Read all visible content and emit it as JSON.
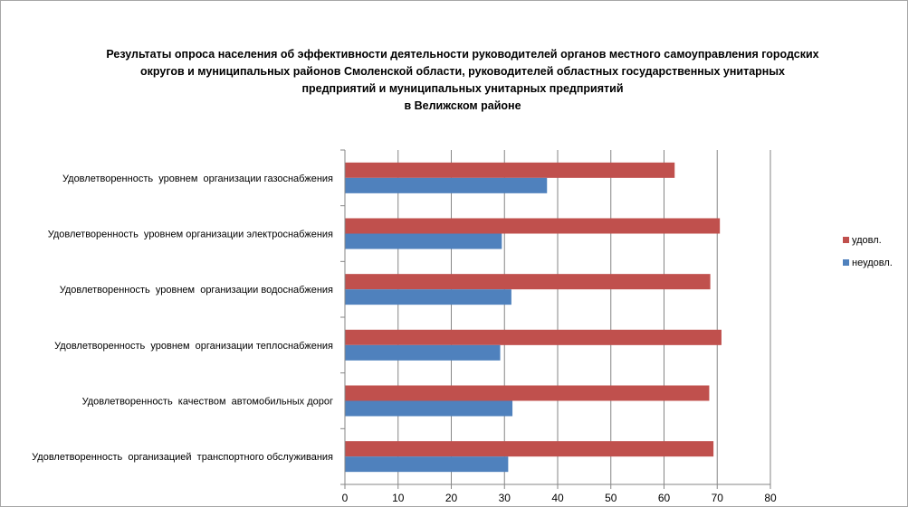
{
  "chart_data": {
    "type": "bar",
    "orientation": "horizontal",
    "title_lines": [
      "Результаты опроса населения об эффективности деятельности руководителей органов местного самоуправления городских",
      "округов и муниципальных районов Смоленской области, руководителей областных государственных унитарных",
      "предприятий и муниципальных унитарных предприятий",
      "в Велижском районе"
    ],
    "categories": [
      "Удовлетворенность  уровнем  организации газоснабжения",
      "Удовлетворенность  уровнем организации электроснабжения",
      "Удовлетворенность  уровнем  организации водоснабжения",
      "Удовлетворенность  уровнем  организации теплоснабжения",
      "Удовлетворенность  качеством  автомобильных дорог",
      "Удовлетворенность  организацией  транспортного обслуживания"
    ],
    "series": [
      {
        "name": "удовл.",
        "color": "#c0504d",
        "values": [
          62,
          70.5,
          68.7,
          70.8,
          68.5,
          69.3
        ]
      },
      {
        "name": "неудовл.",
        "color": "#4f81bd",
        "values": [
          38,
          29.5,
          31.3,
          29.2,
          31.5,
          30.7
        ]
      }
    ],
    "xticks": [
      0,
      10,
      20,
      30,
      40,
      50,
      60,
      70,
      80
    ],
    "xlim": [
      0,
      80
    ],
    "grid": true,
    "legend_position": "right"
  }
}
